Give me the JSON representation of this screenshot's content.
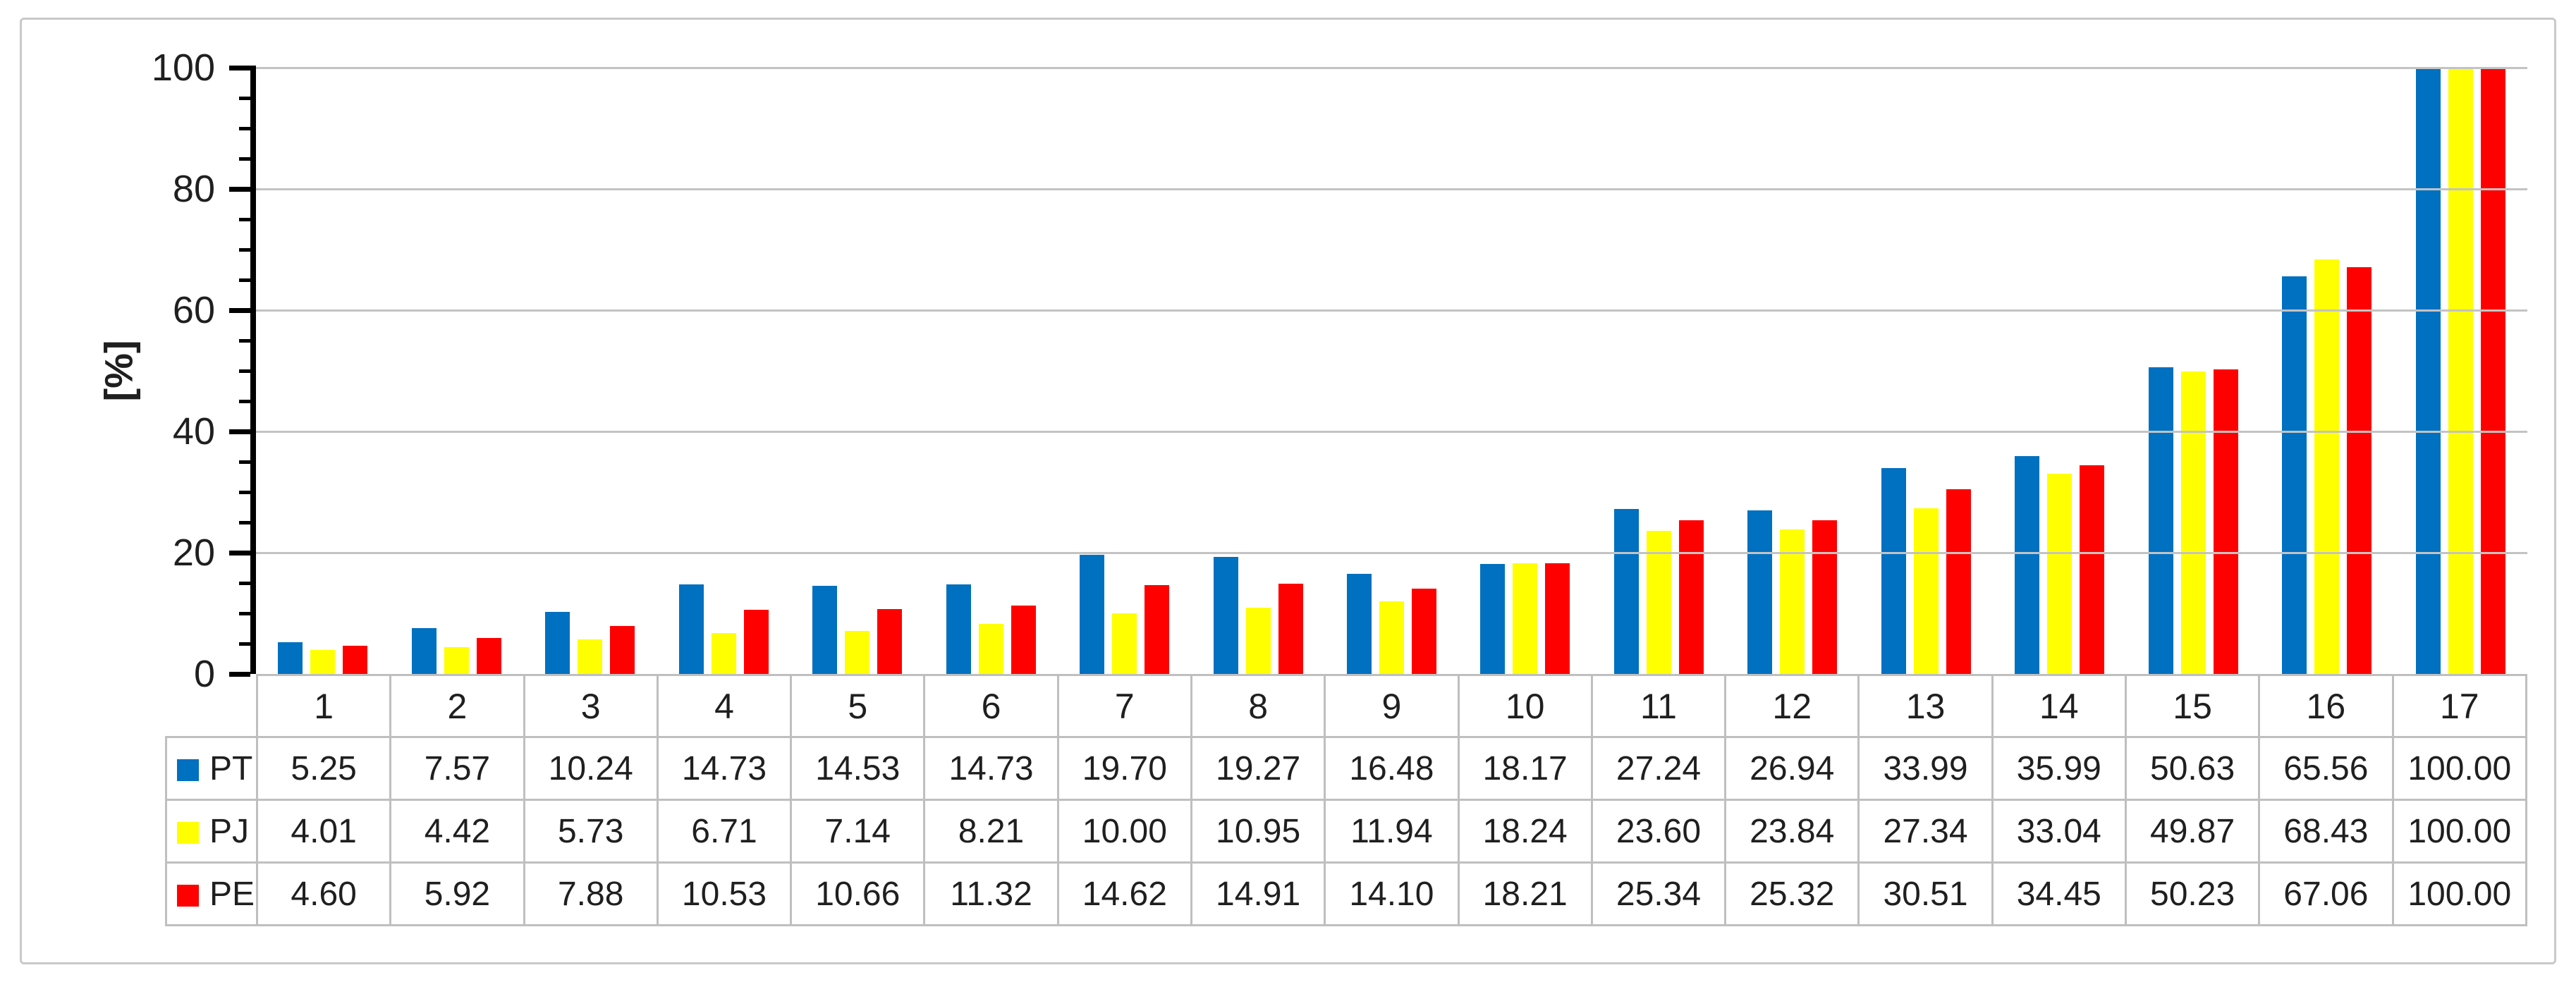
{
  "figure": {
    "background_color": "#FFFFFF",
    "border_color": "#C9C9C9"
  },
  "chart_data": {
    "type": "bar",
    "title": "",
    "xlabel": "",
    "ylabel": "[%]",
    "ylim": [
      0,
      100
    ],
    "yticks": [
      0,
      20,
      40,
      60,
      80,
      100
    ],
    "minor_tick_step": 5,
    "grid": "horizontal-major",
    "gridline_color": "#C3C3C3",
    "legend_position": "table-row-headers",
    "categories": [
      "1",
      "2",
      "3",
      "4",
      "5",
      "6",
      "7",
      "8",
      "9",
      "10",
      "11",
      "12",
      "13",
      "14",
      "15",
      "16",
      "17"
    ],
    "series": [
      {
        "name": "PT",
        "color": "#0070C0",
        "values": [
          5.25,
          7.57,
          10.24,
          14.73,
          14.53,
          14.73,
          19.7,
          19.27,
          16.48,
          18.17,
          27.24,
          26.94,
          33.99,
          35.99,
          50.63,
          65.56,
          100.0
        ]
      },
      {
        "name": "PJ",
        "color": "#FFFF00",
        "values": [
          4.01,
          4.42,
          5.73,
          6.71,
          7.14,
          8.21,
          10.0,
          10.95,
          11.94,
          18.24,
          23.6,
          23.84,
          27.34,
          33.04,
          49.87,
          68.43,
          100.0
        ]
      },
      {
        "name": "PE",
        "color": "#FF0000",
        "values": [
          4.6,
          5.92,
          7.88,
          10.53,
          10.66,
          11.32,
          14.62,
          14.91,
          14.1,
          18.21,
          25.34,
          25.32,
          30.51,
          34.45,
          50.23,
          67.06,
          100.0
        ]
      }
    ],
    "value_decimals": 2
  }
}
